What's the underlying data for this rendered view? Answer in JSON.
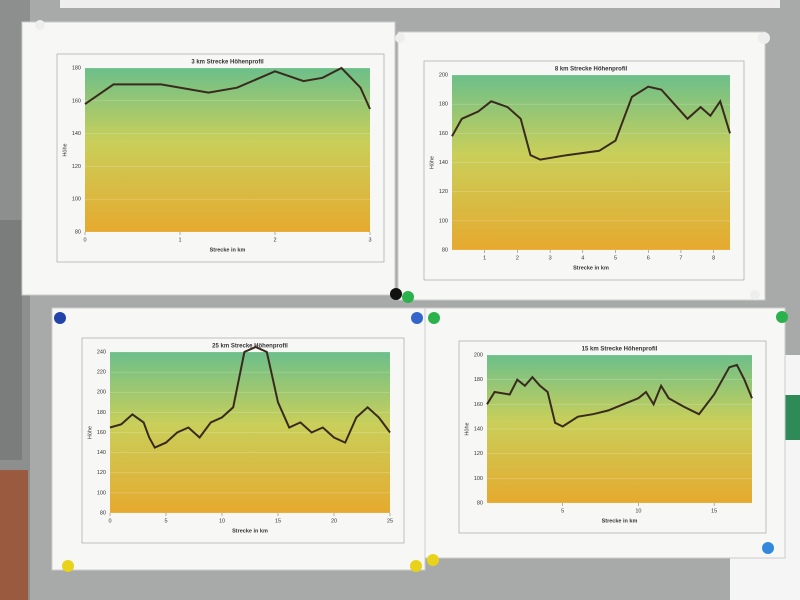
{
  "chart_data": [
    {
      "type": "line",
      "title": "3 km Strecke Höhenprofil",
      "x_label": "Strecke in km",
      "y_label": "Höhe",
      "color": "#3a2a1e",
      "x": [
        0,
        0.3,
        0.8,
        1.3,
        1.6,
        2.0,
        2.3,
        2.5,
        2.7,
        2.9,
        3.0
      ],
      "values": [
        158,
        170,
        170,
        165,
        168,
        178,
        172,
        174,
        180,
        168,
        155
      ],
      "xlim": [
        0,
        3
      ],
      "xticks": [
        0,
        1,
        2,
        3
      ],
      "ylim": [
        80,
        180
      ],
      "yticks": [
        80,
        100,
        120,
        140,
        160,
        180
      ],
      "grid": true
    },
    {
      "type": "line",
      "title": "8 km Strecke Höhenprofil",
      "x_label": "Strecke in km",
      "y_label": "Höhe",
      "color": "#3a2a1e",
      "x": [
        0,
        0.3,
        0.8,
        1.2,
        1.7,
        2.1,
        2.4,
        2.7,
        3.5,
        4.5,
        5.0,
        5.5,
        6.0,
        6.4,
        6.8,
        7.2,
        7.6,
        7.9,
        8.2,
        8.5
      ],
      "values": [
        158,
        170,
        175,
        182,
        178,
        170,
        145,
        142,
        145,
        148,
        155,
        185,
        192,
        190,
        180,
        170,
        178,
        172,
        182,
        160
      ],
      "xlim": [
        0,
        8.5
      ],
      "xticks": [
        1,
        2,
        3,
        4,
        5,
        6,
        7,
        8
      ],
      "ylim": [
        80,
        200
      ],
      "yticks": [
        80,
        100,
        120,
        140,
        160,
        180,
        200
      ],
      "grid": true
    },
    {
      "type": "line",
      "title": "25 km Strecke Höhenprofil",
      "x_label": "Strecke in km",
      "y_label": "Höhe",
      "color": "#3a2a1e",
      "x": [
        0,
        1,
        2,
        3,
        3.5,
        4,
        5,
        6,
        7,
        8,
        9,
        10,
        11,
        12,
        13,
        14,
        15,
        16,
        17,
        18,
        19,
        20,
        21,
        22,
        23,
        24,
        25
      ],
      "values": [
        165,
        168,
        178,
        170,
        155,
        145,
        150,
        160,
        165,
        155,
        170,
        175,
        185,
        240,
        245,
        240,
        190,
        165,
        170,
        160,
        165,
        155,
        150,
        175,
        185,
        175,
        160
      ],
      "xlim": [
        0,
        25
      ],
      "xticks": [
        0,
        5,
        10,
        15,
        20,
        25
      ],
      "ylim": [
        80,
        240
      ],
      "yticks": [
        80,
        100,
        120,
        140,
        160,
        180,
        200,
        220,
        240
      ],
      "grid": true
    },
    {
      "type": "line",
      "title": "15 km Strecke Höhenprofil",
      "x_label": "Strecke in km",
      "y_label": "Höhe",
      "color": "#3a2a1e",
      "x": [
        0,
        0.5,
        1.5,
        2,
        2.5,
        3,
        3.5,
        4,
        4.5,
        5,
        6,
        7,
        8,
        9,
        10,
        10.5,
        11,
        11.5,
        12,
        13,
        14,
        15,
        16,
        16.5,
        17,
        17.5
      ],
      "values": [
        160,
        170,
        168,
        180,
        175,
        182,
        175,
        170,
        145,
        142,
        150,
        152,
        155,
        160,
        165,
        170,
        160,
        175,
        165,
        158,
        152,
        168,
        190,
        192,
        180,
        165
      ],
      "xlim": [
        0,
        17.5
      ],
      "xticks": [
        5,
        10,
        15
      ],
      "ylim": [
        80,
        200
      ],
      "yticks": [
        80,
        100,
        120,
        140,
        160,
        180,
        200
      ],
      "grid": true
    }
  ]
}
